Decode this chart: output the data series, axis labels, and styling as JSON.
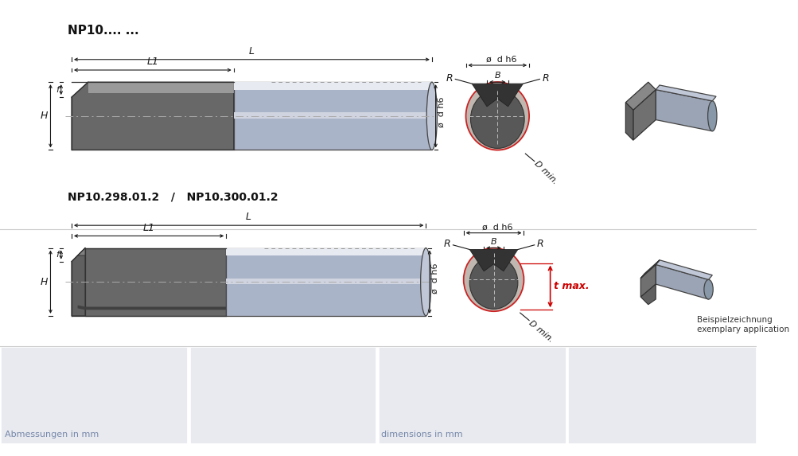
{
  "bg_color": "#ffffff",
  "table_bg": "#e8eaef",
  "title1": "NP10.... ...",
  "title2": "NP10.298.01.2   /   NP10.300.01.2",
  "label_abmessungen": "Abmessungen in mm",
  "label_dimensions": "dimensions in mm",
  "label_beispiel1": "Beispielzeichnung",
  "label_beispiel2": "exemplary application",
  "dark_tool": "#777777",
  "dark_tool2": "#888888",
  "shank_light": "#aab4c8",
  "shank_lighter": "#c0c8d8",
  "shank_highlight": "#dde0ea",
  "shank_top_stripe": "#e8eaf2",
  "shank_mid_stripe": "#d0d4e0",
  "dim_color": "#1a1a1a",
  "red_color": "#cc0000",
  "table_text_color": "#7788aa",
  "sep_line_color": "#cccccc",
  "cutting_dark": "#686868",
  "cutting_darker": "#505050",
  "cutting_face": "#909090"
}
